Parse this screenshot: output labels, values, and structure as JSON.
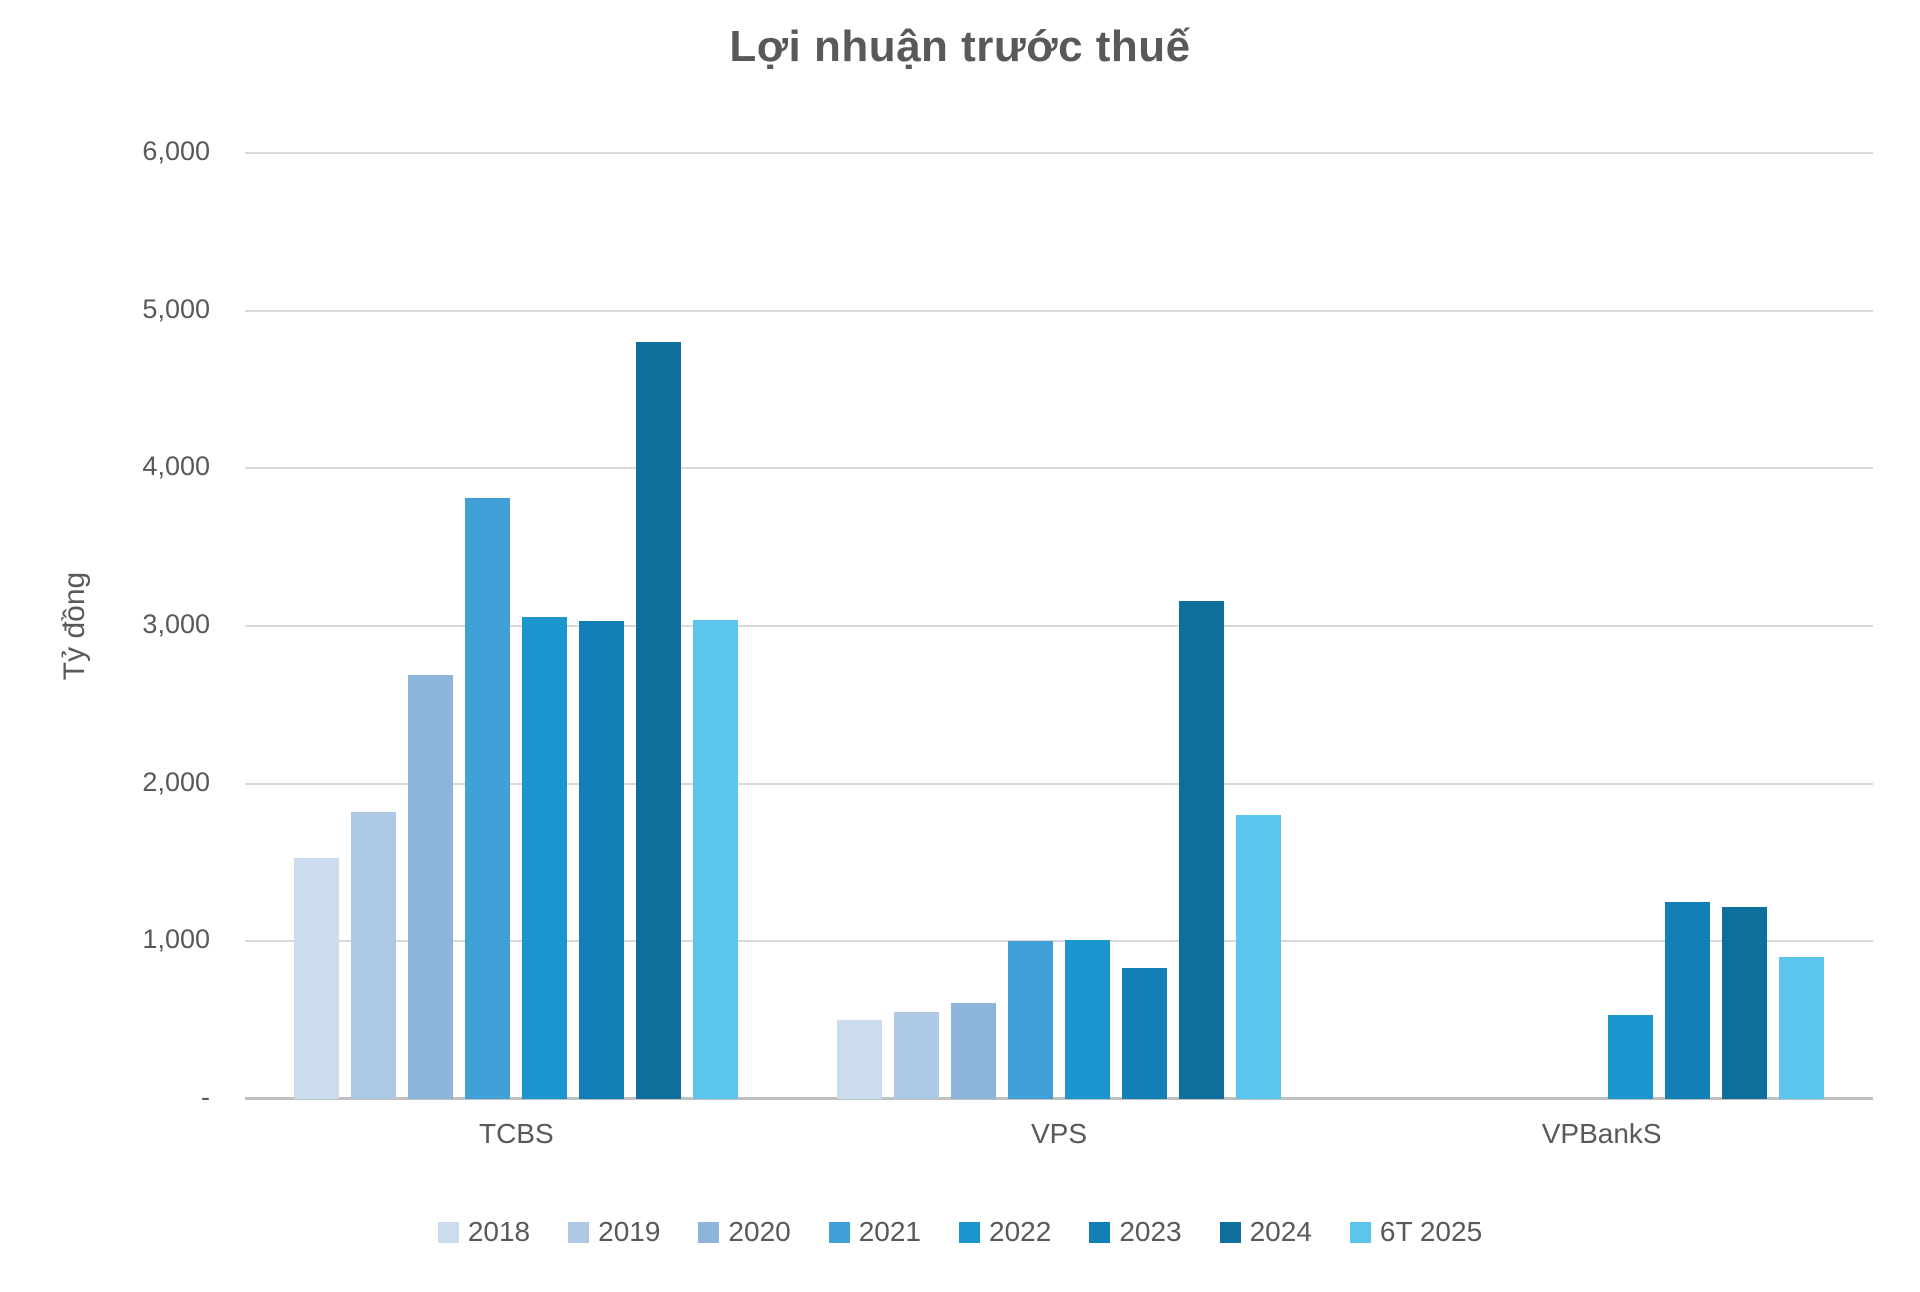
{
  "title": "Lợi nhuận trước thuế",
  "y_axis": {
    "title": "Tỷ đồng",
    "tick_labels": [
      "-",
      "1,000",
      "2,000",
      "3,000",
      "4,000",
      "5,000",
      "6,000"
    ]
  },
  "colors": {
    "text": "#595959",
    "gridline": "#d9d9d9",
    "axis_line": "#c0c0c0",
    "background": "#ffffff"
  },
  "chart_data": {
    "type": "bar",
    "title": "Lợi nhuận trước thuế",
    "ylabel": "Tỷ đồng",
    "ylim": [
      0,
      6000
    ],
    "ytick_interval": 1000,
    "grid": true,
    "legend_position": "bottom",
    "categories": [
      "TCBS",
      "VPS",
      "VPBankS"
    ],
    "series": [
      {
        "name": "2018",
        "color": "#cbdcef",
        "values": [
          1530,
          500,
          null
        ]
      },
      {
        "name": "2019",
        "color": "#adc9e5",
        "values": [
          1820,
          550,
          null
        ]
      },
      {
        "name": "2020",
        "color": "#8db5dc",
        "values": [
          2690,
          610,
          null
        ]
      },
      {
        "name": "2021",
        "color": "#42a0d8",
        "values": [
          3810,
          1000,
          null
        ]
      },
      {
        "name": "2022",
        "color": "#1c96ce",
        "values": [
          3060,
          1010,
          530
        ]
      },
      {
        "name": "2023",
        "color": "#1280b6",
        "values": [
          3030,
          830,
          1250
        ]
      },
      {
        "name": "2024",
        "color": "#0e6f9d",
        "values": [
          4800,
          3160,
          1220
        ]
      },
      {
        "name": "6T 2025",
        "color": "#5bc5ec",
        "values": [
          3040,
          1800,
          900
        ]
      }
    ]
  }
}
